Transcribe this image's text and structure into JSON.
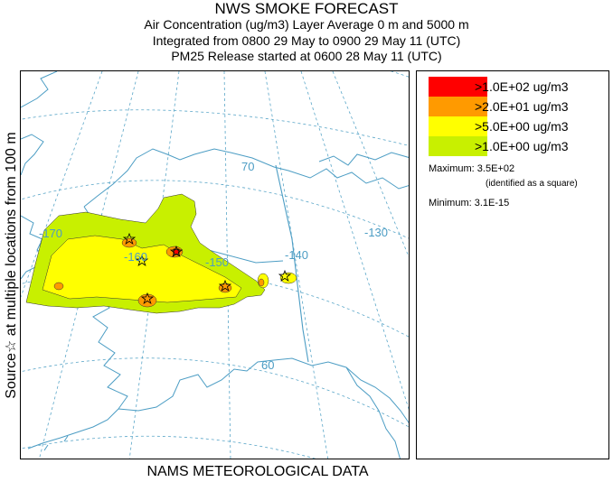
{
  "header": {
    "title": "NWS SMOKE FORECAST",
    "line1": "Air Concentration (ug/m3) Layer Average    0 m and  5000 m",
    "line2": "Integrated from 0800 29 May to 0900 29 May 11 (UTC)",
    "line3": "PM25 Release started at 0600 28 May 11 (UTC)"
  },
  "side_label": "Source☆ at multiple locations  from  100 m",
  "bottom_label": "NAMS METEOROLOGICAL DATA",
  "map": {
    "grid_labels": {
      "lon_170": "-170",
      "lon_160": "-160",
      "lon_150": "-150",
      "lon_140": "-140",
      "lon_130": "-130",
      "lat_70": "70",
      "lat_60": "60"
    },
    "colors": {
      "level1": "#c8f000",
      "level2": "#ffff00",
      "level3": "#ff9a00",
      "level4": "#ff0000",
      "grid": "#5aa6c8",
      "coast": "#4c9dc4"
    }
  },
  "legend": {
    "items": [
      {
        "label": ">1.0E+02 ug/m3",
        "color": "#ff0000"
      },
      {
        "label": ">2.0E+01 ug/m3",
        "color": "#ff9a00"
      },
      {
        "label": ">5.0E+00 ug/m3",
        "color": "#ffff00"
      },
      {
        "label": ">1.0E+00 ug/m3",
        "color": "#c8f000"
      }
    ],
    "maximum": "Maximum: 3.5E+02",
    "maximum_note": "(identified as a square)",
    "minimum": "Minimum: 3.1E-15"
  }
}
